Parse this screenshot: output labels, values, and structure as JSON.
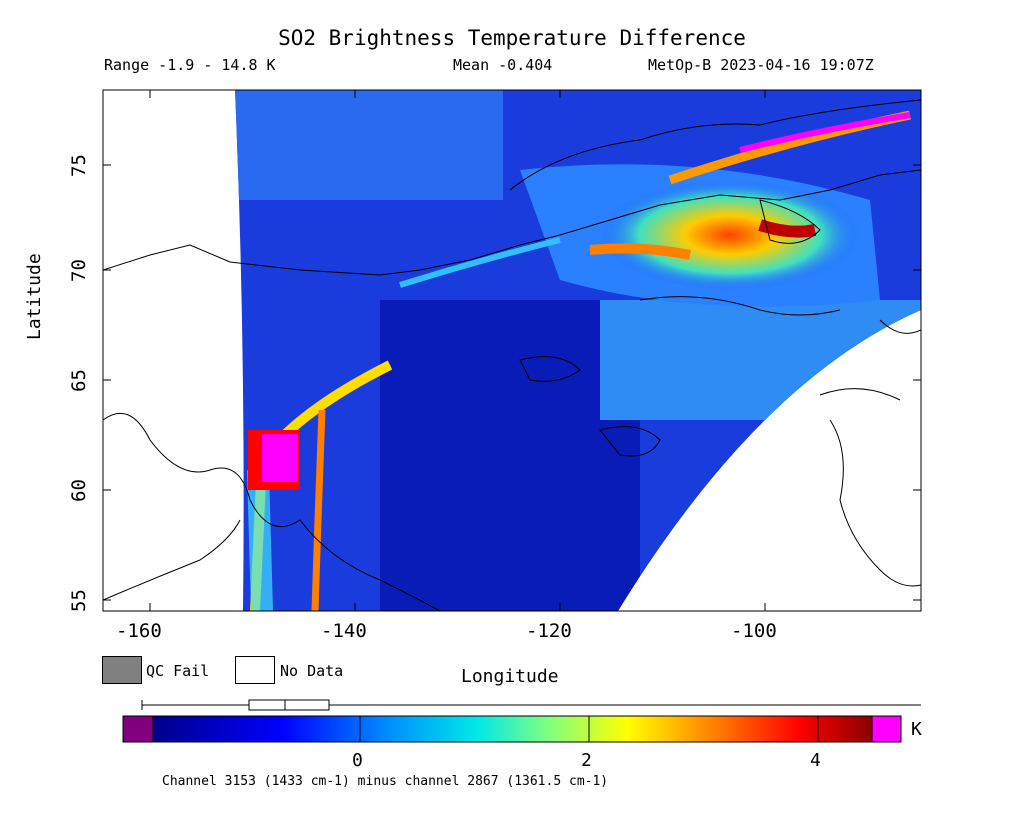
{
  "title": "SO2 Brightness Temperature Difference",
  "subtitle": {
    "range": "Range -1.9 - 14.8 K",
    "mean": "Mean -0.404",
    "satellite": "MetOp-B 2023-04-16 19:07Z"
  },
  "axes": {
    "xlabel": "Longitude",
    "ylabel": "Latitude",
    "xticks": [
      "-160",
      "-140",
      "-120",
      "-100"
    ],
    "yticks": [
      "55",
      "60",
      "65",
      "70",
      "75"
    ]
  },
  "map_data": {
    "type": "heatmap",
    "projection": "lat-lon",
    "lon_range": [
      -165,
      -85
    ],
    "lat_range": [
      55,
      78
    ],
    "swath": "curved satellite scan, no data west of about -150 and southeast of a curved edge",
    "features": [
      {
        "label": "volcano plume source",
        "lon": -149,
        "lat": 62,
        "value_level": "max"
      },
      {
        "label": "SO2 band",
        "from_lon": -147,
        "to_lon": -144,
        "lat": [
          55,
          66
        ]
      },
      {
        "label": "SO2 plume",
        "region": "northern Canada",
        "lon": [
          -112,
          -88
        ],
        "lat": [
          70,
          77
        ]
      }
    ]
  },
  "legend": {
    "qc_fail": "QC Fail",
    "no_data": "No Data",
    "qc_color": "#808080",
    "nodata_color": "#ffffff"
  },
  "colorbar": {
    "unit": "K",
    "ticks": [
      "0",
      "2",
      "4"
    ],
    "range": [
      -1.9,
      4.6
    ],
    "colors": [
      "#800080",
      "#00008b",
      "#0000ff",
      "#0080ff",
      "#00ffff",
      "#80ff80",
      "#ffff00",
      "#ff8000",
      "#ff0000",
      "#8b0000",
      "#ff00ff"
    ]
  },
  "footnote": "Channel 3153 (1433 cm-1) minus channel 2867 (1361.5 cm-1)"
}
